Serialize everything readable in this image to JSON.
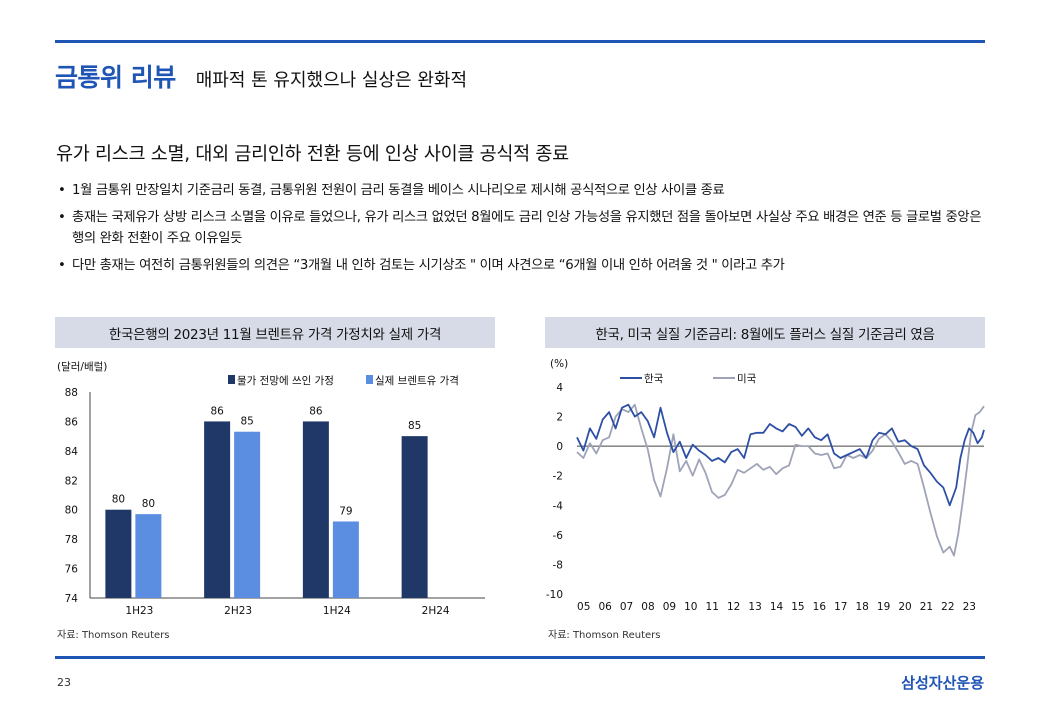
{
  "header": {
    "title": "금통위 리뷰",
    "subtitle": "매파적 톤 유지했으나 실상은 완화적"
  },
  "headline": "유가 리스크 소멸, 대외 금리인하 전환 등에 인상 사이클 공식적 종료",
  "bullets": [
    "1월 금통위 만장일치 기준금리 동결, 금통위원 전원이 금리 동결을 베이스 시나리오로 제시해 공식적으로 인상 사이클 종료",
    "총재는 국제유가 상방 리스크 소멸을 이유로 들었으나, 유가 리스크 없었던 8월에도 금리 인상 가능성을 유지했던 점을 돌아보면 사실상 주요 배경은 연준 등 글로벌 중앙은행의 완화 전환이 주요 이유일듯",
    "다만 총재는 여전히 금통위원들의 의견은 “3개월 내 인하 검토는 시기상조 \" 이며 사견으로 “6개월 이내 인하 어려울 것 \" 이라고 추가"
  ],
  "left_panel": {
    "title": "한국은행의 2023년 11월 브렌트유 가격 가정치와 실제 가격",
    "source": "자료: Thomson Reuters"
  },
  "right_panel": {
    "title": "한국, 미국 실질 기준금리: 8월에도 플러스 실질 기준금리 였음",
    "source": "자료: Thomson Reuters"
  },
  "footer": {
    "page_number": "23",
    "brand": "삼성자산운용"
  },
  "chart_data": [
    {
      "type": "bar",
      "unit_label": "(달러/배럴)",
      "categories": [
        "1H23",
        "2H23",
        "1H24",
        "2H24"
      ],
      "series": [
        {
          "name": "물가 전망에 쓰인 가정",
          "color": "#1f3868",
          "values": [
            80,
            86,
            86,
            85
          ]
        },
        {
          "name": "실제 브렌트유 가격",
          "color": "#5b8ee0",
          "values": [
            79.7,
            85.3,
            79.2,
            null
          ]
        }
      ],
      "data_labels": [
        [
          "80",
          "86",
          "86",
          "85"
        ],
        [
          "80",
          "85",
          "79",
          ""
        ]
      ],
      "ylim": [
        74,
        88
      ],
      "yticks": [
        74,
        76,
        78,
        80,
        82,
        84,
        86,
        88
      ],
      "legend": "top-right"
    },
    {
      "type": "line",
      "unit_label": "(%)",
      "x_ticks": [
        "05",
        "06",
        "07",
        "08",
        "09",
        "10",
        "11",
        "12",
        "13",
        "14",
        "15",
        "16",
        "17",
        "18",
        "19",
        "20",
        "21",
        "22",
        "23"
      ],
      "x_range": [
        2005,
        2024
      ],
      "ylim": [
        -10,
        4
      ],
      "yticks": [
        4,
        2,
        0,
        -2,
        -4,
        -6,
        -8,
        -10
      ],
      "legend": "top",
      "series": [
        {
          "name": "한국",
          "color": "#2d4fa5",
          "points": [
            [
              2005.0,
              0.6
            ],
            [
              2005.3,
              -0.3
            ],
            [
              2005.6,
              1.2
            ],
            [
              2005.9,
              0.5
            ],
            [
              2006.2,
              1.8
            ],
            [
              2006.5,
              2.3
            ],
            [
              2006.8,
              1.2
            ],
            [
              2007.1,
              2.6
            ],
            [
              2007.4,
              2.8
            ],
            [
              2007.7,
              2.0
            ],
            [
              2008.0,
              2.3
            ],
            [
              2008.3,
              1.7
            ],
            [
              2008.6,
              0.6
            ],
            [
              2008.9,
              2.6
            ],
            [
              2009.2,
              0.9
            ],
            [
              2009.5,
              -0.4
            ],
            [
              2009.8,
              0.3
            ],
            [
              2010.1,
              -0.8
            ],
            [
              2010.4,
              0.1
            ],
            [
              2010.7,
              -0.3
            ],
            [
              2011.0,
              -0.6
            ],
            [
              2011.3,
              -1.0
            ],
            [
              2011.6,
              -0.8
            ],
            [
              2011.9,
              -1.1
            ],
            [
              2012.2,
              -0.4
            ],
            [
              2012.5,
              -0.2
            ],
            [
              2012.8,
              -0.8
            ],
            [
              2013.1,
              0.8
            ],
            [
              2013.4,
              0.9
            ],
            [
              2013.7,
              0.9
            ],
            [
              2014.0,
              1.5
            ],
            [
              2014.3,
              1.2
            ],
            [
              2014.6,
              1.0
            ],
            [
              2014.9,
              1.5
            ],
            [
              2015.2,
              1.3
            ],
            [
              2015.5,
              0.7
            ],
            [
              2015.8,
              1.2
            ],
            [
              2016.1,
              0.6
            ],
            [
              2016.4,
              0.4
            ],
            [
              2016.7,
              0.8
            ],
            [
              2017.0,
              -0.5
            ],
            [
              2017.3,
              -0.8
            ],
            [
              2017.6,
              -0.6
            ],
            [
              2017.9,
              -0.4
            ],
            [
              2018.2,
              -0.2
            ],
            [
              2018.5,
              -0.8
            ],
            [
              2018.8,
              0.4
            ],
            [
              2019.1,
              0.9
            ],
            [
              2019.4,
              0.8
            ],
            [
              2019.7,
              1.2
            ],
            [
              2020.0,
              0.3
            ],
            [
              2020.3,
              0.4
            ],
            [
              2020.6,
              0.0
            ],
            [
              2020.9,
              -0.2
            ],
            [
              2021.2,
              -1.3
            ],
            [
              2021.5,
              -1.8
            ],
            [
              2021.8,
              -2.4
            ],
            [
              2022.1,
              -2.8
            ],
            [
              2022.4,
              -4.0
            ],
            [
              2022.7,
              -2.8
            ],
            [
              2022.9,
              -0.8
            ],
            [
              2023.1,
              0.4
            ],
            [
              2023.3,
              1.2
            ],
            [
              2023.5,
              0.9
            ],
            [
              2023.7,
              0.2
            ],
            [
              2023.9,
              0.6
            ],
            [
              2024.0,
              1.1
            ]
          ]
        },
        {
          "name": "미국",
          "color": "#9ea3b8",
          "points": [
            [
              2005.0,
              -0.4
            ],
            [
              2005.3,
              -0.8
            ],
            [
              2005.6,
              0.2
            ],
            [
              2005.9,
              -0.5
            ],
            [
              2006.2,
              0.4
            ],
            [
              2006.5,
              0.6
            ],
            [
              2006.8,
              2.0
            ],
            [
              2007.1,
              2.5
            ],
            [
              2007.4,
              2.3
            ],
            [
              2007.7,
              2.8
            ],
            [
              2008.0,
              1.2
            ],
            [
              2008.3,
              -0.2
            ],
            [
              2008.6,
              -2.3
            ],
            [
              2008.9,
              -3.4
            ],
            [
              2009.2,
              -1.5
            ],
            [
              2009.5,
              0.8
            ],
            [
              2009.8,
              -1.7
            ],
            [
              2010.1,
              -1.0
            ],
            [
              2010.4,
              -2.0
            ],
            [
              2010.7,
              -0.9
            ],
            [
              2011.0,
              -1.8
            ],
            [
              2011.3,
              -3.1
            ],
            [
              2011.6,
              -3.5
            ],
            [
              2011.9,
              -3.3
            ],
            [
              2012.2,
              -2.6
            ],
            [
              2012.5,
              -1.6
            ],
            [
              2012.8,
              -1.8
            ],
            [
              2013.1,
              -1.5
            ],
            [
              2013.4,
              -1.2
            ],
            [
              2013.7,
              -1.6
            ],
            [
              2014.0,
              -1.4
            ],
            [
              2014.3,
              -1.9
            ],
            [
              2014.6,
              -1.5
            ],
            [
              2014.9,
              -1.3
            ],
            [
              2015.2,
              0.1
            ],
            [
              2015.5,
              0.0
            ],
            [
              2015.8,
              0.0
            ],
            [
              2016.1,
              -0.5
            ],
            [
              2016.4,
              -0.6
            ],
            [
              2016.7,
              -0.5
            ],
            [
              2017.0,
              -1.5
            ],
            [
              2017.3,
              -1.4
            ],
            [
              2017.6,
              -0.6
            ],
            [
              2017.9,
              -0.8
            ],
            [
              2018.2,
              -0.6
            ],
            [
              2018.5,
              -0.8
            ],
            [
              2018.8,
              -0.3
            ],
            [
              2019.1,
              0.5
            ],
            [
              2019.4,
              0.8
            ],
            [
              2019.7,
              0.3
            ],
            [
              2020.0,
              -0.4
            ],
            [
              2020.3,
              -1.2
            ],
            [
              2020.6,
              -1.0
            ],
            [
              2020.9,
              -1.2
            ],
            [
              2021.2,
              -2.8
            ],
            [
              2021.5,
              -4.5
            ],
            [
              2021.8,
              -6.1
            ],
            [
              2022.1,
              -7.2
            ],
            [
              2022.4,
              -6.8
            ],
            [
              2022.6,
              -7.4
            ],
            [
              2022.8,
              -5.9
            ],
            [
              2023.0,
              -3.8
            ],
            [
              2023.2,
              -1.5
            ],
            [
              2023.4,
              0.9
            ],
            [
              2023.6,
              2.1
            ],
            [
              2023.8,
              2.3
            ],
            [
              2024.0,
              2.7
            ]
          ]
        }
      ]
    }
  ]
}
